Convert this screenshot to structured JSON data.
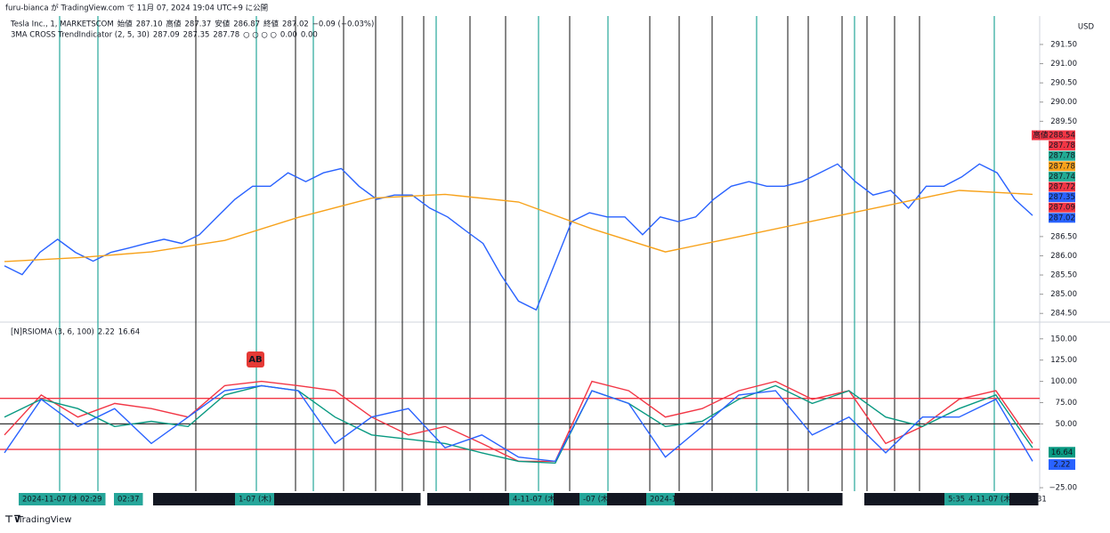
{
  "header": {
    "published": "furu-bianca が TradingView.com で 11月 07, 2024 19:04 UTC+9 に公開",
    "symbol": "Tesla Inc., 1, MARKETSCOM",
    "ohlc": [
      {
        "label": "始値",
        "value": "287.10"
      },
      {
        "label": "高値",
        "value": "287.37"
      },
      {
        "label": "安値",
        "value": "286.87"
      },
      {
        "label": "終値",
        "value": "287.02"
      }
    ],
    "change": "−0.09 (−0.03%)",
    "indicator": "3MA CROSS TrendIndicator (2, 5, 30)",
    "indicator_values": [
      {
        "text": "287.09",
        "color": "#f23645"
      },
      {
        "text": "287.35",
        "color": "#2962ff"
      },
      {
        "text": "287.78",
        "color": "#f7a21b"
      },
      {
        "text": "○ ○ ○ ○",
        "color": "#555555"
      },
      {
        "text": "0.00",
        "color": "#2962ff"
      },
      {
        "text": "0.00",
        "color": "#f23645"
      }
    ],
    "currency": "USD"
  },
  "chart_data": [
    {
      "type": "line",
      "series": [
        {
          "color": "#2962ff",
          "values": [
            285.74,
            285.51,
            286.09,
            286.43,
            286.09,
            285.86,
            286.09,
            286.2,
            286.32,
            286.43,
            286.32,
            286.55,
            287.01,
            287.47,
            287.81,
            287.81,
            288.16,
            287.93,
            288.16,
            288.27,
            287.81,
            287.47,
            287.58,
            287.58,
            287.24,
            287.01,
            286.66,
            286.32,
            285.51,
            284.82,
            284.59,
            285.74,
            286.89,
            287.12,
            287.01,
            287.01,
            286.55,
            287.01,
            286.89,
            287.01,
            287.47,
            287.81,
            287.93,
            287.81,
            287.81,
            287.93,
            288.16,
            288.39,
            287.93,
            287.58,
            287.7,
            287.24,
            287.81,
            287.81,
            288.05,
            288.39,
            288.16,
            287.47,
            287.05
          ]
        },
        {
          "color": "#f7a21b",
          "values": [
            285.85,
            285.95,
            286.1,
            286.4,
            287.0,
            287.5,
            287.6,
            287.4,
            286.7,
            286.1,
            286.5,
            286.9,
            287.3,
            287.7,
            287.6
          ]
        }
      ],
      "ylim": [
        284.32,
        292.24
      ],
      "yticks": [
        {
          "value": 291.5,
          "label": "291.50"
        },
        {
          "value": 291,
          "label": "291.00"
        },
        {
          "value": 290.5,
          "label": "290.50"
        },
        {
          "value": 290,
          "label": "290.00"
        },
        {
          "value": 289.5,
          "label": "289.50"
        },
        {
          "value": 286.5,
          "label": "286.50"
        },
        {
          "value": 286,
          "label": "286.00"
        },
        {
          "value": 285.5,
          "label": "285.50"
        },
        {
          "value": 285,
          "label": "285.00"
        },
        {
          "value": 284.5,
          "label": "284.50"
        }
      ],
      "high_label": "高値",
      "price_labels": [
        {
          "value": 288.54,
          "color": "#f23645"
        },
        {
          "value": 287.78,
          "color": "#f23645"
        },
        {
          "value": 287.78,
          "color": "#22ab94"
        },
        {
          "value": 287.78,
          "color": "#f7a21b"
        },
        {
          "value": 287.74,
          "color": "#22ab94"
        },
        {
          "value": 287.72,
          "color": "#f23645"
        },
        {
          "value": 287.35,
          "color": "#2962ff"
        },
        {
          "value": 287.09,
          "color": "#f23645"
        },
        {
          "value": 287.02,
          "color": "#2962ff"
        }
      ]
    },
    {
      "type": "line",
      "title": "[N]RSIOMA (3, 6, 100)",
      "legend_values": [
        {
          "text": "2.22",
          "color": "#2962ff"
        },
        {
          "text": "16.64",
          "color": "#089981"
        }
      ],
      "series": [
        {
          "color": "#f23645",
          "values": [
            37,
            84,
            58,
            74,
            68,
            58,
            95,
            100,
            95,
            89,
            58,
            37,
            47,
            27,
            6,
            6,
            100,
            89,
            58,
            68,
            89,
            100,
            79,
            89,
            27,
            47,
            79,
            89,
            27
          ]
        },
        {
          "color": "#089981",
          "values": [
            58,
            79,
            68,
            47,
            53,
            47,
            84,
            95,
            89,
            58,
            37,
            32,
            27,
            16,
            6,
            4,
            89,
            74,
            47,
            53,
            79,
            95,
            74,
            89,
            58,
            47,
            68,
            84,
            22
          ]
        },
        {
          "color": "#2962ff",
          "values": [
            16,
            79,
            47,
            68,
            27,
            58,
            89,
            95,
            89,
            27,
            58,
            68,
            22,
            37,
            11,
            6,
            89,
            74,
            11,
            47,
            84,
            89,
            37,
            58,
            16,
            58,
            58,
            79,
            6
          ]
        }
      ],
      "ylim": [
        -27,
        166.5
      ],
      "yticks": [
        {
          "value": 150,
          "label": "150.00"
        },
        {
          "value": 125,
          "label": "125.00"
        },
        {
          "value": 100,
          "label": "100.00"
        },
        {
          "value": 75,
          "label": "75.00"
        },
        {
          "value": 50,
          "label": "50.00"
        },
        {
          "value": -25,
          "label": "−25.00"
        }
      ],
      "levels": [
        {
          "value": 80,
          "color": "#f23645"
        },
        {
          "value": 50,
          "color": "#333333"
        },
        {
          "value": 20,
          "color": "#f23645"
        }
      ],
      "value_tags": [
        {
          "value": 16.64,
          "color": "#089981"
        },
        {
          "value": 2.22,
          "color": "#2962ff"
        }
      ]
    }
  ],
  "time_labels": [
    "2024-11-07 (木)",
    "02:29",
    "02:37",
    "2024-11-07 (木)",
    "02:58",
    "1-07 (木)",
    "2024-11-07 (木)",
    "03:24",
    "1-07 (木)",
    "03:37",
    "2024-11-07 (木)",
    "03:57",
    "4-11-07 (木)",
    "04:12",
    "-07 (木)",
    "2024-11-0",
    "2024-1",
    "2024-11-07 (木)",
    "04:50",
    "2024-11-07 (木)",
    "05:08",
    "2024-11-07 (木)",
    "05:31",
    "5:35",
    "4-11-07 (木)",
    "05:50"
  ],
  "time_axis_end": "31",
  "badge": "AB",
  "footer": "TradingView"
}
